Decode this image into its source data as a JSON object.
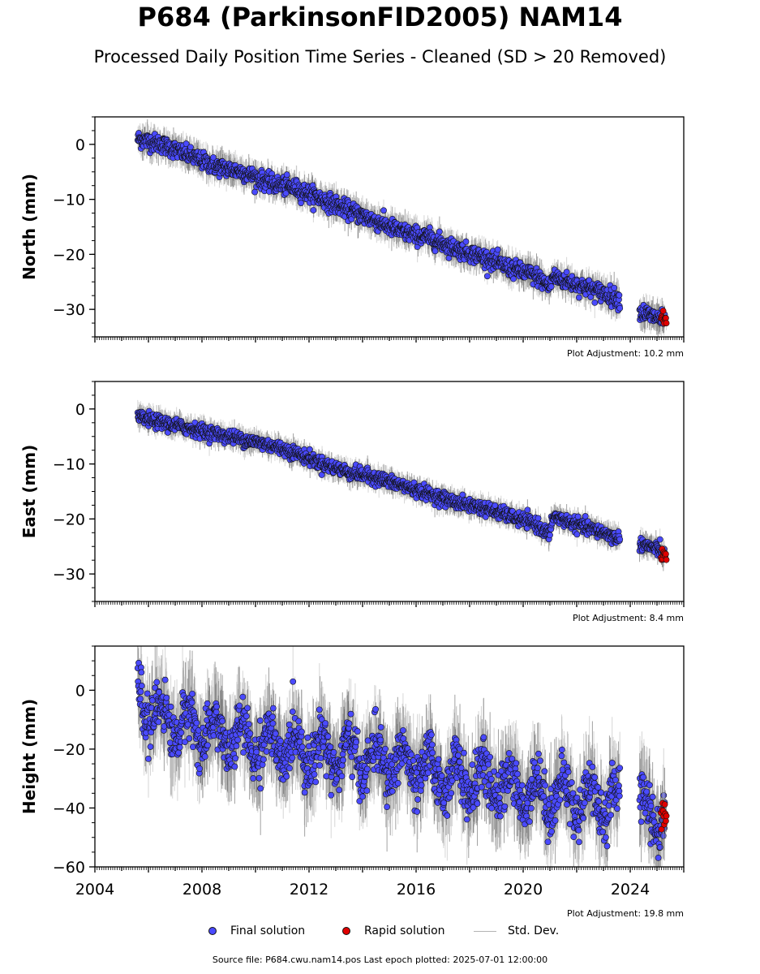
{
  "title": "P684 (ParkinsonFID2005) NAM14",
  "subtitle": "Processed Daily Position Time Series - Cleaned (SD > 20 Removed)",
  "footer": "Source file: P684.cwu.nam14.pos  Last epoch plotted: 2025-07-01 12:00:00",
  "legend": {
    "final": "Final solution",
    "rapid": "Rapid solution",
    "std": "Std. Dev."
  },
  "colors": {
    "final": "#4a4aff",
    "rapid": "#e00000",
    "std": "#b4b4b4",
    "marker_edge": "#111111"
  },
  "chart_data": [
    {
      "type": "scatter",
      "ylabel": "North (mm)",
      "adjustment": "Plot Adjustment: 10.2 mm",
      "xlim": [
        2004,
        2026
      ],
      "ylim": [
        -35,
        5
      ],
      "yticks": [
        0,
        -10,
        -20,
        -30
      ],
      "xtick_labels_shown": false,
      "series": [
        {
          "name": "Final solution",
          "x": [
            2005.6,
            2006.5,
            2007.5,
            2008.5,
            2009.5,
            2010.5,
            2011.5,
            2012.5,
            2013.5,
            2014.5,
            2015.5,
            2016.5,
            2017.5,
            2018.5,
            2019.5,
            2020.5,
            2021.0,
            2021.1,
            2022.0,
            2023.0,
            2023.5,
            2024.4,
            2025.0,
            2025.3
          ],
          "y": [
            1.0,
            0.0,
            -2.0,
            -4.0,
            -5.0,
            -7.0,
            -8.0,
            -10.0,
            -12.0,
            -14.0,
            -16.0,
            -17.0,
            -19.0,
            -20.5,
            -22.5,
            -24.0,
            -26.0,
            -24.0,
            -25.5,
            -27.0,
            -28.0,
            -30.5,
            -31.5,
            -32.0
          ],
          "spread": 1.3
        },
        {
          "name": "Rapid solution",
          "x": [
            2025.15,
            2025.35
          ],
          "y": [
            -31.5,
            -31.8
          ],
          "spread": 0.8
        }
      ]
    },
    {
      "type": "scatter",
      "ylabel": "East (mm)",
      "adjustment": "Plot Adjustment: 8.4 mm",
      "xlim": [
        2004,
        2026
      ],
      "ylim": [
        -35,
        5
      ],
      "yticks": [
        0,
        -10,
        -20,
        -30
      ],
      "xtick_labels_shown": false,
      "series": [
        {
          "name": "Final solution",
          "x": [
            2005.6,
            2006.5,
            2007.5,
            2008.5,
            2009.5,
            2010.5,
            2011.5,
            2012.5,
            2013.5,
            2014.5,
            2015.5,
            2016.5,
            2017.5,
            2018.5,
            2019.5,
            2020.5,
            2021.0,
            2021.1,
            2022.0,
            2023.0,
            2023.5,
            2024.4,
            2025.0,
            2025.3
          ],
          "y": [
            -1.5,
            -2.5,
            -3.5,
            -4.5,
            -5.5,
            -6.5,
            -8.0,
            -10.0,
            -11.5,
            -12.5,
            -14.0,
            -15.5,
            -17.0,
            -18.0,
            -19.5,
            -21.0,
            -23.0,
            -19.5,
            -21.0,
            -22.5,
            -23.5,
            -24.5,
            -25.5,
            -26.5
          ],
          "spread": 1.0
        },
        {
          "name": "Rapid solution",
          "x": [
            2025.15,
            2025.35
          ],
          "y": [
            -26.5,
            -27.0
          ],
          "spread": 0.6
        }
      ]
    },
    {
      "type": "scatter",
      "ylabel": "Height (mm)",
      "adjustment": "Plot Adjustment: 19.8 mm",
      "xlim": [
        2004,
        2026
      ],
      "ylim": [
        -60,
        15
      ],
      "yticks": [
        0,
        -20,
        -40,
        -60
      ],
      "xtick_labels_shown": true,
      "xticks": [
        2004,
        2008,
        2012,
        2016,
        2020,
        2024
      ],
      "series": [
        {
          "name": "Final solution",
          "x": [
            2005.6,
            2006.5,
            2007.5,
            2008.5,
            2009.5,
            2010.5,
            2011.5,
            2012.5,
            2013.5,
            2014.5,
            2015.5,
            2016.5,
            2017.5,
            2018.5,
            2019.5,
            2020.5,
            2021.5,
            2022.5,
            2023.5,
            2024.4,
            2025.0,
            2025.3
          ],
          "y": [
            -2,
            -10,
            -12,
            -15,
            -17,
            -19,
            -20,
            -21,
            -22,
            -24,
            -25,
            -28,
            -30,
            -31,
            -33,
            -35,
            -36,
            -37,
            -38,
            -40,
            -42,
            -43
          ],
          "spread": 7.0,
          "seasonal_amplitude": 6.0
        },
        {
          "name": "Rapid solution",
          "x": [
            2025.15,
            2025.35
          ],
          "y": [
            -42,
            -44
          ],
          "spread": 4.0
        }
      ]
    }
  ]
}
